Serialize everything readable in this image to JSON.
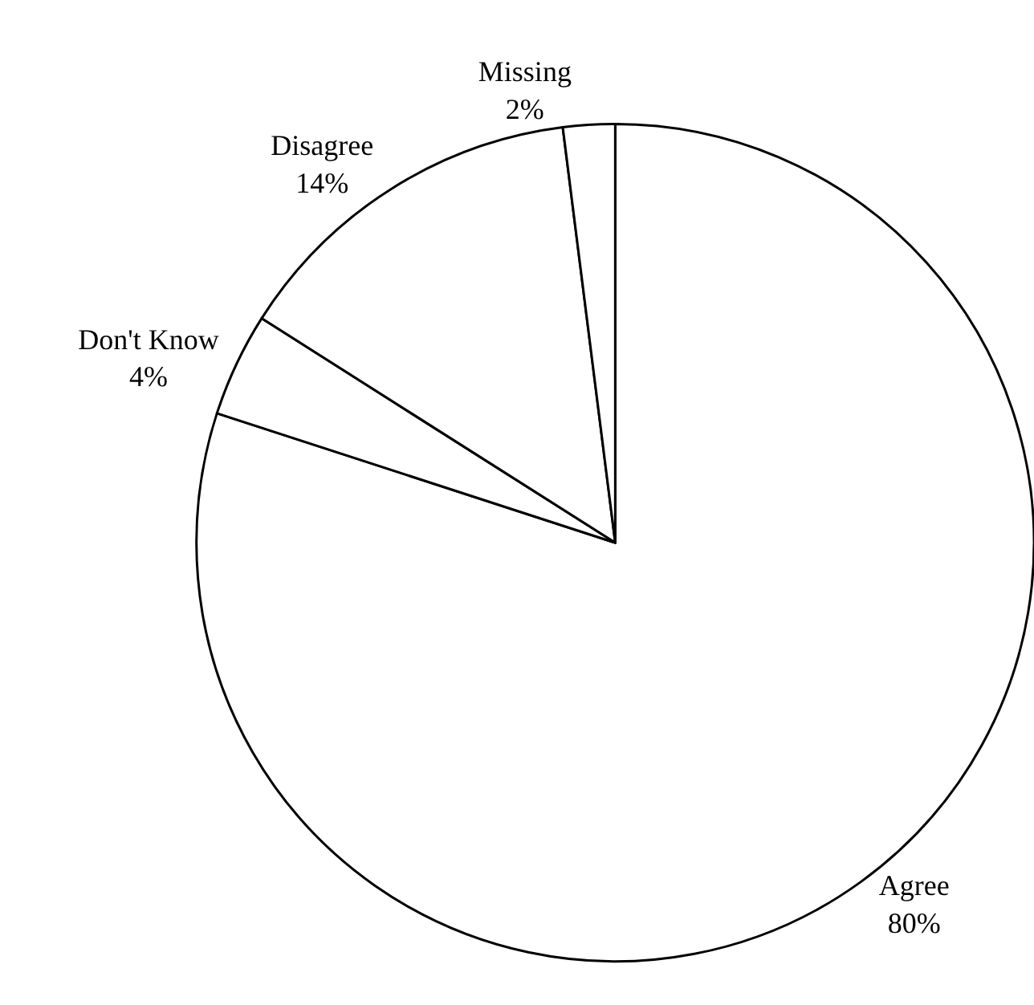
{
  "chart_data": {
    "type": "pie",
    "categories": [
      "Agree",
      "Don't Know",
      "Disagree",
      "Missing"
    ],
    "values": [
      80,
      4,
      14,
      2
    ],
    "value_labels": [
      "80%",
      "4%",
      "14%",
      "2%"
    ],
    "colors": [
      "#ffffff",
      "#ffffff",
      "#ffffff",
      "#ffffff"
    ],
    "legend": false
  }
}
